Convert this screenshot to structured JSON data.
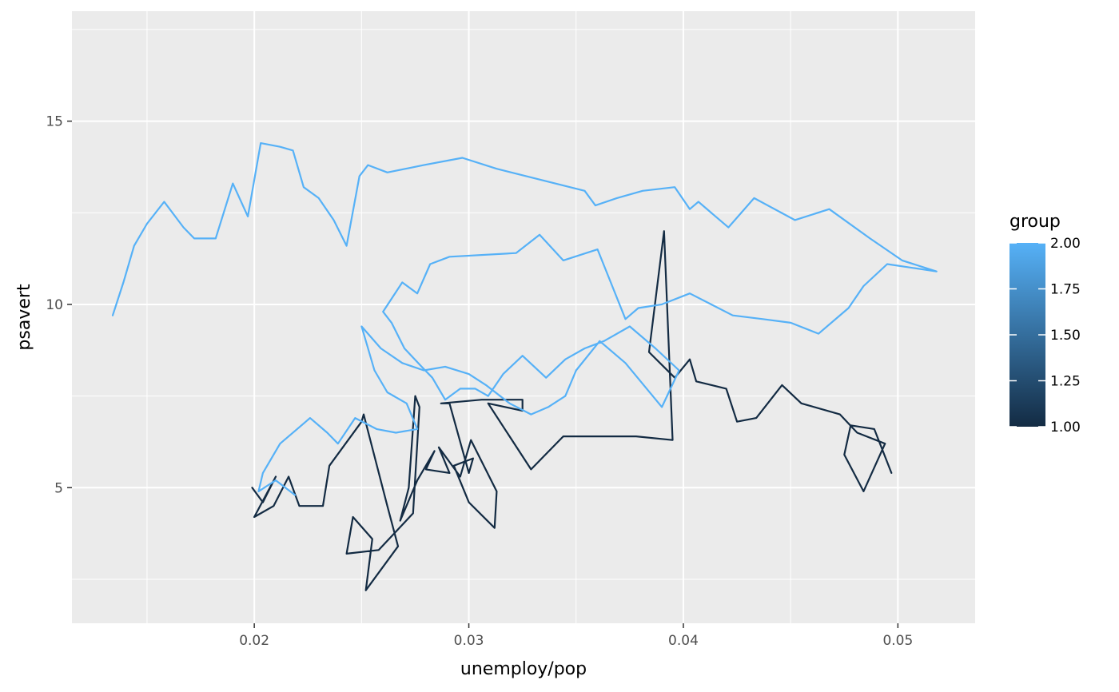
{
  "chart_data": {
    "type": "line",
    "xlabel": "unemploy/pop",
    "ylabel": "psavert",
    "xlim": [
      0.0115,
      0.0536
    ],
    "ylim": [
      1.3,
      18.0
    ],
    "x_ticks": [
      0.02,
      0.03,
      0.04,
      0.05
    ],
    "x_tick_labels": [
      "0.02",
      "0.03",
      "0.04",
      "0.05"
    ],
    "y_ticks": [
      5,
      10,
      15
    ],
    "y_tick_labels": [
      "5",
      "10",
      "15"
    ],
    "grid": true,
    "legend": {
      "title": "group",
      "placement": "right",
      "type": "colorbar",
      "range": [
        1.0,
        2.0
      ],
      "ticks": [
        1.0,
        1.25,
        1.5,
        1.75,
        2.0
      ],
      "tick_labels": [
        "1.00",
        "1.25",
        "1.50",
        "1.75",
        "2.00"
      ],
      "low_color": "#132B43",
      "high_color": "#56B1F7"
    },
    "series": [
      {
        "group": 1,
        "color": "#132B43",
        "points": [
          [
            0.0199,
            5.0
          ],
          [
            0.0204,
            4.6
          ],
          [
            0.021,
            5.3
          ],
          [
            0.02,
            4.2
          ],
          [
            0.0209,
            4.5
          ],
          [
            0.0216,
            5.3
          ],
          [
            0.0221,
            4.5
          ],
          [
            0.0232,
            4.5
          ],
          [
            0.0235,
            5.6
          ],
          [
            0.025,
            6.8
          ],
          [
            0.0251,
            7.0
          ],
          [
            0.0262,
            4.5
          ],
          [
            0.0267,
            3.4
          ],
          [
            0.0252,
            2.2
          ],
          [
            0.0255,
            3.6
          ],
          [
            0.0246,
            4.2
          ],
          [
            0.0243,
            3.2
          ],
          [
            0.0258,
            3.3
          ],
          [
            0.0274,
            4.3
          ],
          [
            0.0277,
            7.2
          ],
          [
            0.0275,
            7.5
          ],
          [
            0.0272,
            5.0
          ],
          [
            0.0268,
            4.1
          ],
          [
            0.0276,
            5.2
          ],
          [
            0.0284,
            6.0
          ],
          [
            0.028,
            5.5
          ],
          [
            0.0291,
            5.4
          ],
          [
            0.0286,
            6.1
          ],
          [
            0.0296,
            5.3
          ],
          [
            0.0301,
            6.3
          ],
          [
            0.0313,
            4.9
          ],
          [
            0.0312,
            3.9
          ],
          [
            0.03,
            4.6
          ],
          [
            0.0293,
            5.6
          ],
          [
            0.0302,
            5.8
          ],
          [
            0.03,
            5.4
          ],
          [
            0.0291,
            7.3
          ],
          [
            0.0287,
            7.3
          ],
          [
            0.0306,
            7.4
          ],
          [
            0.0325,
            7.4
          ],
          [
            0.0325,
            7.1
          ],
          [
            0.0309,
            7.3
          ],
          [
            0.0329,
            5.5
          ],
          [
            0.0344,
            6.4
          ],
          [
            0.0378,
            6.4
          ],
          [
            0.0395,
            6.3
          ],
          [
            0.0391,
            12.0
          ],
          [
            0.0384,
            8.7
          ],
          [
            0.0396,
            8.0
          ],
          [
            0.0403,
            8.5
          ],
          [
            0.0406,
            7.9
          ],
          [
            0.042,
            7.7
          ],
          [
            0.0425,
            6.8
          ],
          [
            0.0434,
            6.9
          ],
          [
            0.0446,
            7.8
          ],
          [
            0.0455,
            7.3
          ],
          [
            0.0473,
            7.0
          ],
          [
            0.0481,
            6.5
          ],
          [
            0.0494,
            6.2
          ],
          [
            0.0484,
            4.9
          ],
          [
            0.0475,
            5.9
          ],
          [
            0.0478,
            6.7
          ],
          [
            0.0489,
            6.6
          ],
          [
            0.0497,
            5.4
          ]
        ]
      },
      {
        "group": 2,
        "color": "#56B1F7",
        "points": [
          [
            0.0134,
            9.7
          ],
          [
            0.0139,
            10.6
          ],
          [
            0.0144,
            11.6
          ],
          [
            0.015,
            12.2
          ],
          [
            0.0158,
            12.8
          ],
          [
            0.0167,
            12.1
          ],
          [
            0.0172,
            11.8
          ],
          [
            0.0182,
            11.8
          ],
          [
            0.019,
            13.3
          ],
          [
            0.0197,
            12.4
          ],
          [
            0.0203,
            14.4
          ],
          [
            0.0212,
            14.3
          ],
          [
            0.0218,
            14.2
          ],
          [
            0.0223,
            13.2
          ],
          [
            0.023,
            12.9
          ],
          [
            0.0237,
            12.3
          ],
          [
            0.0243,
            11.6
          ],
          [
            0.0249,
            13.5
          ],
          [
            0.0253,
            13.8
          ],
          [
            0.0262,
            13.6
          ],
          [
            0.0279,
            13.8
          ],
          [
            0.0297,
            14.0
          ],
          [
            0.0313,
            13.7
          ],
          [
            0.0354,
            13.1
          ],
          [
            0.0359,
            12.7
          ],
          [
            0.0369,
            12.9
          ],
          [
            0.0381,
            13.1
          ],
          [
            0.0396,
            13.2
          ],
          [
            0.0403,
            12.6
          ],
          [
            0.0407,
            12.8
          ],
          [
            0.0421,
            12.1
          ],
          [
            0.0433,
            12.9
          ],
          [
            0.0452,
            12.3
          ],
          [
            0.0468,
            12.6
          ],
          [
            0.0487,
            11.8
          ],
          [
            0.0502,
            11.2
          ],
          [
            0.0518,
            10.9
          ],
          [
            0.0495,
            11.1
          ],
          [
            0.0484,
            10.5
          ],
          [
            0.0477,
            9.9
          ],
          [
            0.0463,
            9.2
          ],
          [
            0.045,
            9.5
          ],
          [
            0.0437,
            9.6
          ],
          [
            0.0423,
            9.7
          ],
          [
            0.0403,
            10.3
          ],
          [
            0.039,
            10.0
          ],
          [
            0.0379,
            9.9
          ],
          [
            0.0373,
            9.6
          ],
          [
            0.036,
            11.5
          ],
          [
            0.0344,
            11.2
          ],
          [
            0.0333,
            11.9
          ],
          [
            0.0322,
            11.4
          ],
          [
            0.0291,
            11.3
          ],
          [
            0.0282,
            11.1
          ],
          [
            0.0276,
            10.3
          ],
          [
            0.0269,
            10.6
          ],
          [
            0.026,
            9.8
          ],
          [
            0.0264,
            9.5
          ],
          [
            0.027,
            8.8
          ],
          [
            0.0278,
            8.3
          ],
          [
            0.0283,
            8.0
          ],
          [
            0.0289,
            7.4
          ],
          [
            0.0296,
            7.7
          ],
          [
            0.0303,
            7.7
          ],
          [
            0.0309,
            7.5
          ],
          [
            0.0316,
            8.1
          ],
          [
            0.0325,
            8.6
          ],
          [
            0.0336,
            8.0
          ],
          [
            0.0345,
            8.5
          ],
          [
            0.0354,
            8.8
          ],
          [
            0.0363,
            9.0
          ],
          [
            0.0375,
            9.4
          ],
          [
            0.0387,
            8.8
          ],
          [
            0.0398,
            8.2
          ],
          [
            0.039,
            7.2
          ],
          [
            0.0373,
            8.4
          ],
          [
            0.0361,
            9.0
          ],
          [
            0.035,
            8.2
          ],
          [
            0.0345,
            7.5
          ],
          [
            0.0337,
            7.2
          ],
          [
            0.0329,
            7.0
          ],
          [
            0.0319,
            7.3
          ],
          [
            0.0308,
            7.8
          ],
          [
            0.03,
            8.1
          ],
          [
            0.0289,
            8.3
          ],
          [
            0.0279,
            8.2
          ],
          [
            0.0269,
            8.4
          ],
          [
            0.0259,
            8.8
          ],
          [
            0.025,
            9.4
          ],
          [
            0.0256,
            8.2
          ],
          [
            0.0262,
            7.6
          ],
          [
            0.0271,
            7.3
          ],
          [
            0.0276,
            6.6
          ],
          [
            0.0266,
            6.5
          ],
          [
            0.0257,
            6.6
          ],
          [
            0.0247,
            6.9
          ],
          [
            0.0239,
            6.2
          ],
          [
            0.0234,
            6.5
          ],
          [
            0.0226,
            6.9
          ],
          [
            0.022,
            6.6
          ],
          [
            0.0212,
            6.2
          ],
          [
            0.0204,
            5.4
          ],
          [
            0.0202,
            4.9
          ],
          [
            0.021,
            5.2
          ],
          [
            0.0219,
            4.8
          ]
        ]
      }
    ]
  }
}
